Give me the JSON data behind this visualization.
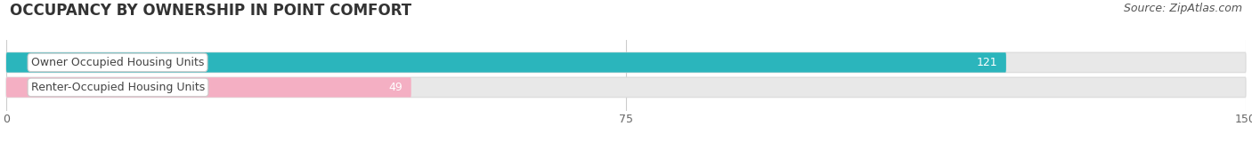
{
  "title": "OCCUPANCY BY OWNERSHIP IN POINT COMFORT",
  "source": "Source: ZipAtlas.com",
  "categories": [
    "Owner Occupied Housing Units",
    "Renter-Occupied Housing Units"
  ],
  "values": [
    121,
    49
  ],
  "bar_colors": [
    "#2bb5bc",
    "#f4afc3"
  ],
  "xlim": [
    0,
    150
  ],
  "xticks": [
    0,
    75,
    150
  ],
  "title_fontsize": 12,
  "source_fontsize": 9,
  "bar_label_fontsize": 9,
  "category_fontsize": 9,
  "value_label_color": "#ffffff",
  "bar_bg_color": "#e8e8e8",
  "background_color": "#ffffff",
  "grid_color": "#cccccc",
  "text_color": "#444444"
}
